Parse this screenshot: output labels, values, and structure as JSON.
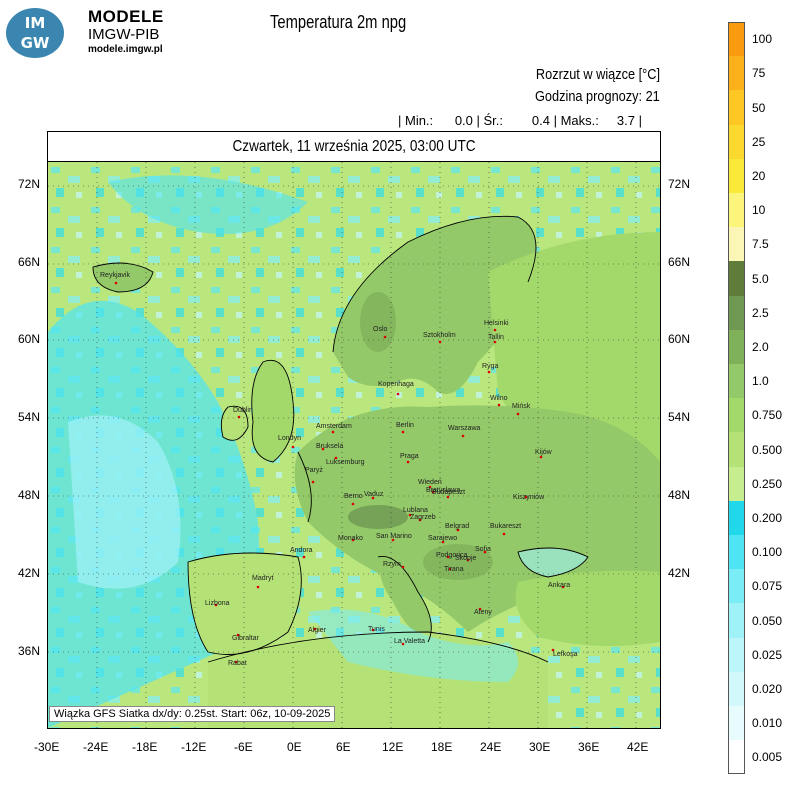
{
  "logo": {
    "line1": "IM",
    "line2": "GW"
  },
  "brand": {
    "name": "MODELE",
    "org": "IMGW-PIB",
    "url": "modele.imgw.pl"
  },
  "title": "Temperatura 2m npg",
  "subtitle_right": {
    "line1": "Rozrzut w wiązce [°C]",
    "line2": "Godzina prognozy: 21",
    "stats": "| Min.:      0.0 | Śr.:        0.4 | Maks.:     3.7 |"
  },
  "date_header": "Czwartek, 11 września 2025, 03:00 UTC",
  "footer": "Wiązka GFS Siatka dx/dy: 0.25st. Start: 06z, 10-09-2025",
  "lat_labels": [
    "72N",
    "66N",
    "60N",
    "54N",
    "48N",
    "42N",
    "36N"
  ],
  "lon_labels": [
    "-30E",
    "-24E",
    "-18E",
    "-12E",
    "-6E",
    "0E",
    "6E",
    "12E",
    "18E",
    "24E",
    "30E",
    "36E",
    "42E"
  ],
  "legend": [
    {
      "label": "100",
      "color": "#f99b0e"
    },
    {
      "label": "75",
      "color": "#fcb11a"
    },
    {
      "label": "50",
      "color": "#fec723"
    },
    {
      "label": "25",
      "color": "#fcd92f"
    },
    {
      "label": "20",
      "color": "#fbe93a"
    },
    {
      "label": "10",
      "color": "#fbf57c"
    },
    {
      "label": "7.5",
      "color": "#fbf5b6"
    },
    {
      "label": "5.0",
      "color": "#5f7c3a"
    },
    {
      "label": "2.5",
      "color": "#6f9853"
    },
    {
      "label": "2.0",
      "color": "#7fb15a"
    },
    {
      "label": "1.0",
      "color": "#93c968"
    },
    {
      "label": "0.750",
      "color": "#a3d86b"
    },
    {
      "label": "0.500",
      "color": "#b4e276"
    },
    {
      "label": "0.250",
      "color": "#c6ee8e"
    },
    {
      "label": "0.200",
      "color": "#21d8eb"
    },
    {
      "label": "0.100",
      "color": "#4ee4f3"
    },
    {
      "label": "0.075",
      "color": "#7aecf6"
    },
    {
      "label": "0.050",
      "color": "#9ff2f8"
    },
    {
      "label": "0.025",
      "color": "#bdf6fa"
    },
    {
      "label": "0.020",
      "color": "#d2f8fb"
    },
    {
      "label": "0.010",
      "color": "#e8fbfd"
    },
    {
      "label": "0.005",
      "color": "#ffffff"
    }
  ],
  "cities": [
    "Reykjavik",
    "Oslo",
    "Sztokholm",
    "Helsinki",
    "Tallin",
    "Ryga",
    "Kopenhaga",
    "Wilno",
    "Mińsk",
    "Dublin",
    "Amsterdam",
    "Berlin",
    "Warszawa",
    "Londyn",
    "Bruksela",
    "Luksemburg",
    "Praga",
    "Kijów",
    "Paryż",
    "Wiedeń",
    "Bratysława",
    "Budapeszt",
    "Kiszyniów",
    "Berno",
    "Vaduz",
    "Lublana",
    "Zagrzeb",
    "Belgrad",
    "Bukareszt",
    "Monako",
    "San Marino",
    "Sarajewo",
    "Andora",
    "Rzym",
    "Podgorica",
    "Skopje",
    "Sofia",
    "Tirana",
    "Madryt",
    "Ankara",
    "Lizbona",
    "Ateny",
    "Gibraltar",
    "Algier",
    "Tunis",
    "La Valetta",
    "Rabat",
    "Lefkoşa"
  ]
}
